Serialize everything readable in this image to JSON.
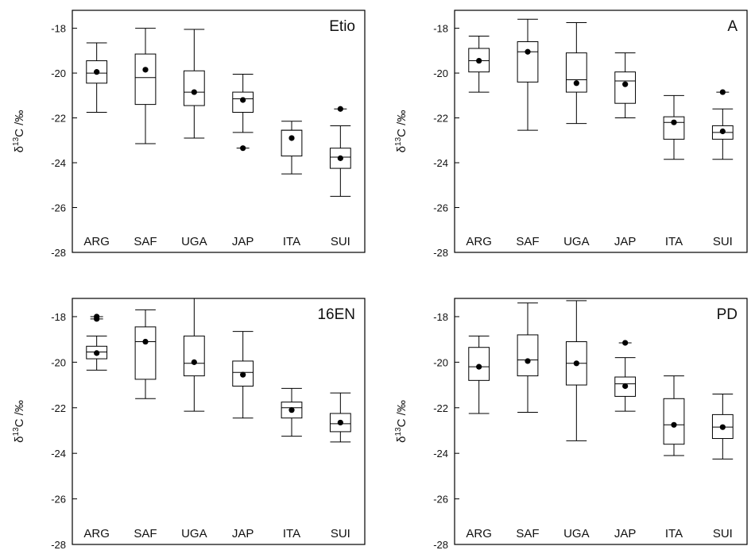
{
  "chart_data": [
    {
      "type": "box",
      "title": "Etio",
      "ylabel_parts": [
        "δ",
        "13",
        "C /‰"
      ],
      "ylim": [
        -28,
        -17.2
      ],
      "yticks": [
        "-18",
        "-20",
        "-22",
        "-24",
        "-26",
        "-28"
      ],
      "categories": [
        "ARG",
        "SAF",
        "UGA",
        "JAP",
        "ITA",
        "SUI"
      ],
      "boxes": [
        {
          "low": -21.75,
          "q1": -20.45,
          "median": -20.0,
          "q3": -19.45,
          "high": -18.65,
          "mean": -19.95,
          "outliers": []
        },
        {
          "low": -23.15,
          "q1": -21.4,
          "median": -20.2,
          "q3": -19.15,
          "high": -18.0,
          "mean": -19.85,
          "outliers": []
        },
        {
          "low": -22.9,
          "q1": -21.45,
          "median": -20.85,
          "q3": -19.9,
          "high": -18.05,
          "mean": -20.85,
          "outliers": []
        },
        {
          "low": -22.65,
          "q1": -21.75,
          "median": -21.15,
          "q3": -20.85,
          "high": -20.05,
          "mean": -21.2,
          "outliers": [
            -23.35
          ]
        },
        {
          "low": -24.5,
          "q1": -23.7,
          "median": -22.55,
          "q3": -22.55,
          "high": -22.15,
          "mean": -22.9,
          "outliers": []
        },
        {
          "low": -25.5,
          "q1": -24.25,
          "median": -23.75,
          "q3": -23.35,
          "high": -22.35,
          "mean": -23.8,
          "outliers": [
            -21.6
          ]
        }
      ]
    },
    {
      "type": "box",
      "title": "A",
      "ylabel_parts": [
        "δ",
        "13",
        "C /‰"
      ],
      "ylim": [
        -28,
        -17.2
      ],
      "yticks": [
        "-18",
        "-20",
        "-22",
        "-24",
        "-26",
        "-28"
      ],
      "categories": [
        "ARG",
        "SAF",
        "UGA",
        "JAP",
        "ITA",
        "SUI"
      ],
      "boxes": [
        {
          "low": -20.85,
          "q1": -19.95,
          "median": -19.45,
          "q3": -18.9,
          "high": -18.35,
          "mean": -19.45,
          "outliers": []
        },
        {
          "low": -22.55,
          "q1": -20.4,
          "median": -19.05,
          "q3": -18.6,
          "high": -17.6,
          "mean": -19.05,
          "outliers": []
        },
        {
          "low": -22.25,
          "q1": -20.85,
          "median": -20.3,
          "q3": -19.1,
          "high": -17.75,
          "mean": -20.45,
          "outliers": []
        },
        {
          "low": -22.0,
          "q1": -21.35,
          "median": -20.35,
          "q3": -19.95,
          "high": -19.1,
          "mean": -20.5,
          "outliers": []
        },
        {
          "low": -23.85,
          "q1": -22.95,
          "median": -22.2,
          "q3": -21.95,
          "high": -21.0,
          "mean": -22.2,
          "outliers": []
        },
        {
          "low": -23.85,
          "q1": -22.95,
          "median": -22.65,
          "q3": -22.35,
          "high": -21.6,
          "mean": -22.6,
          "outliers": [
            -20.85
          ]
        }
      ]
    },
    {
      "type": "box",
      "title": "16EN",
      "ylabel_parts": [
        "δ",
        "13",
        "C /‰"
      ],
      "ylim": [
        -28,
        -17.2
      ],
      "yticks": [
        "-18",
        "-20",
        "-22",
        "-24",
        "-26",
        "-28"
      ],
      "categories": [
        "ARG",
        "SAF",
        "UGA",
        "JAP",
        "ITA",
        "SUI"
      ],
      "boxes": [
        {
          "low": -20.35,
          "q1": -19.85,
          "median": -19.55,
          "q3": -19.3,
          "high": -18.85,
          "mean": -19.6,
          "outliers": [
            -18.0,
            -18.1
          ]
        },
        {
          "low": -21.6,
          "q1": -20.75,
          "median": -19.1,
          "q3": -18.45,
          "high": -17.7,
          "mean": -19.1,
          "outliers": []
        },
        {
          "low": -22.15,
          "q1": -20.6,
          "median": -20.05,
          "q3": -18.85,
          "high": -17.2,
          "mean": -20.0,
          "outliers": []
        },
        {
          "low": -22.45,
          "q1": -21.05,
          "median": -20.45,
          "q3": -19.95,
          "high": -18.65,
          "mean": -20.55,
          "outliers": []
        },
        {
          "low": -23.25,
          "q1": -22.45,
          "median": -22.0,
          "q3": -21.75,
          "high": -21.15,
          "mean": -22.1,
          "outliers": []
        },
        {
          "low": -23.5,
          "q1": -23.05,
          "median": -22.7,
          "q3": -22.25,
          "high": -21.35,
          "mean": -22.65,
          "outliers": []
        }
      ]
    },
    {
      "type": "box",
      "title": "PD",
      "ylabel_parts": [
        "δ",
        "13",
        "C /‰"
      ],
      "ylim": [
        -28,
        -17.2
      ],
      "yticks": [
        "-18",
        "-20",
        "-22",
        "-24",
        "-26",
        "-28"
      ],
      "categories": [
        "ARG",
        "SAF",
        "UGA",
        "JAP",
        "ITA",
        "SUI"
      ],
      "boxes": [
        {
          "low": -22.25,
          "q1": -20.8,
          "median": -20.2,
          "q3": -19.35,
          "high": -18.85,
          "mean": -20.2,
          "outliers": []
        },
        {
          "low": -22.2,
          "q1": -20.6,
          "median": -19.9,
          "q3": -18.8,
          "high": -17.4,
          "mean": -19.95,
          "outliers": []
        },
        {
          "low": -23.45,
          "q1": -21.0,
          "median": -20.05,
          "q3": -19.1,
          "high": -17.3,
          "mean": -20.05,
          "outliers": []
        },
        {
          "low": -22.15,
          "q1": -21.5,
          "median": -20.95,
          "q3": -20.65,
          "high": -19.8,
          "mean": -21.05,
          "outliers": [
            -19.15
          ]
        },
        {
          "low": -24.1,
          "q1": -23.6,
          "median": -22.75,
          "q3": -21.6,
          "high": -20.6,
          "mean": -22.75,
          "outliers": []
        },
        {
          "low": -24.25,
          "q1": -23.35,
          "median": -22.85,
          "q3": -22.3,
          "high": -21.4,
          "mean": -22.85,
          "outliers": []
        }
      ]
    }
  ]
}
